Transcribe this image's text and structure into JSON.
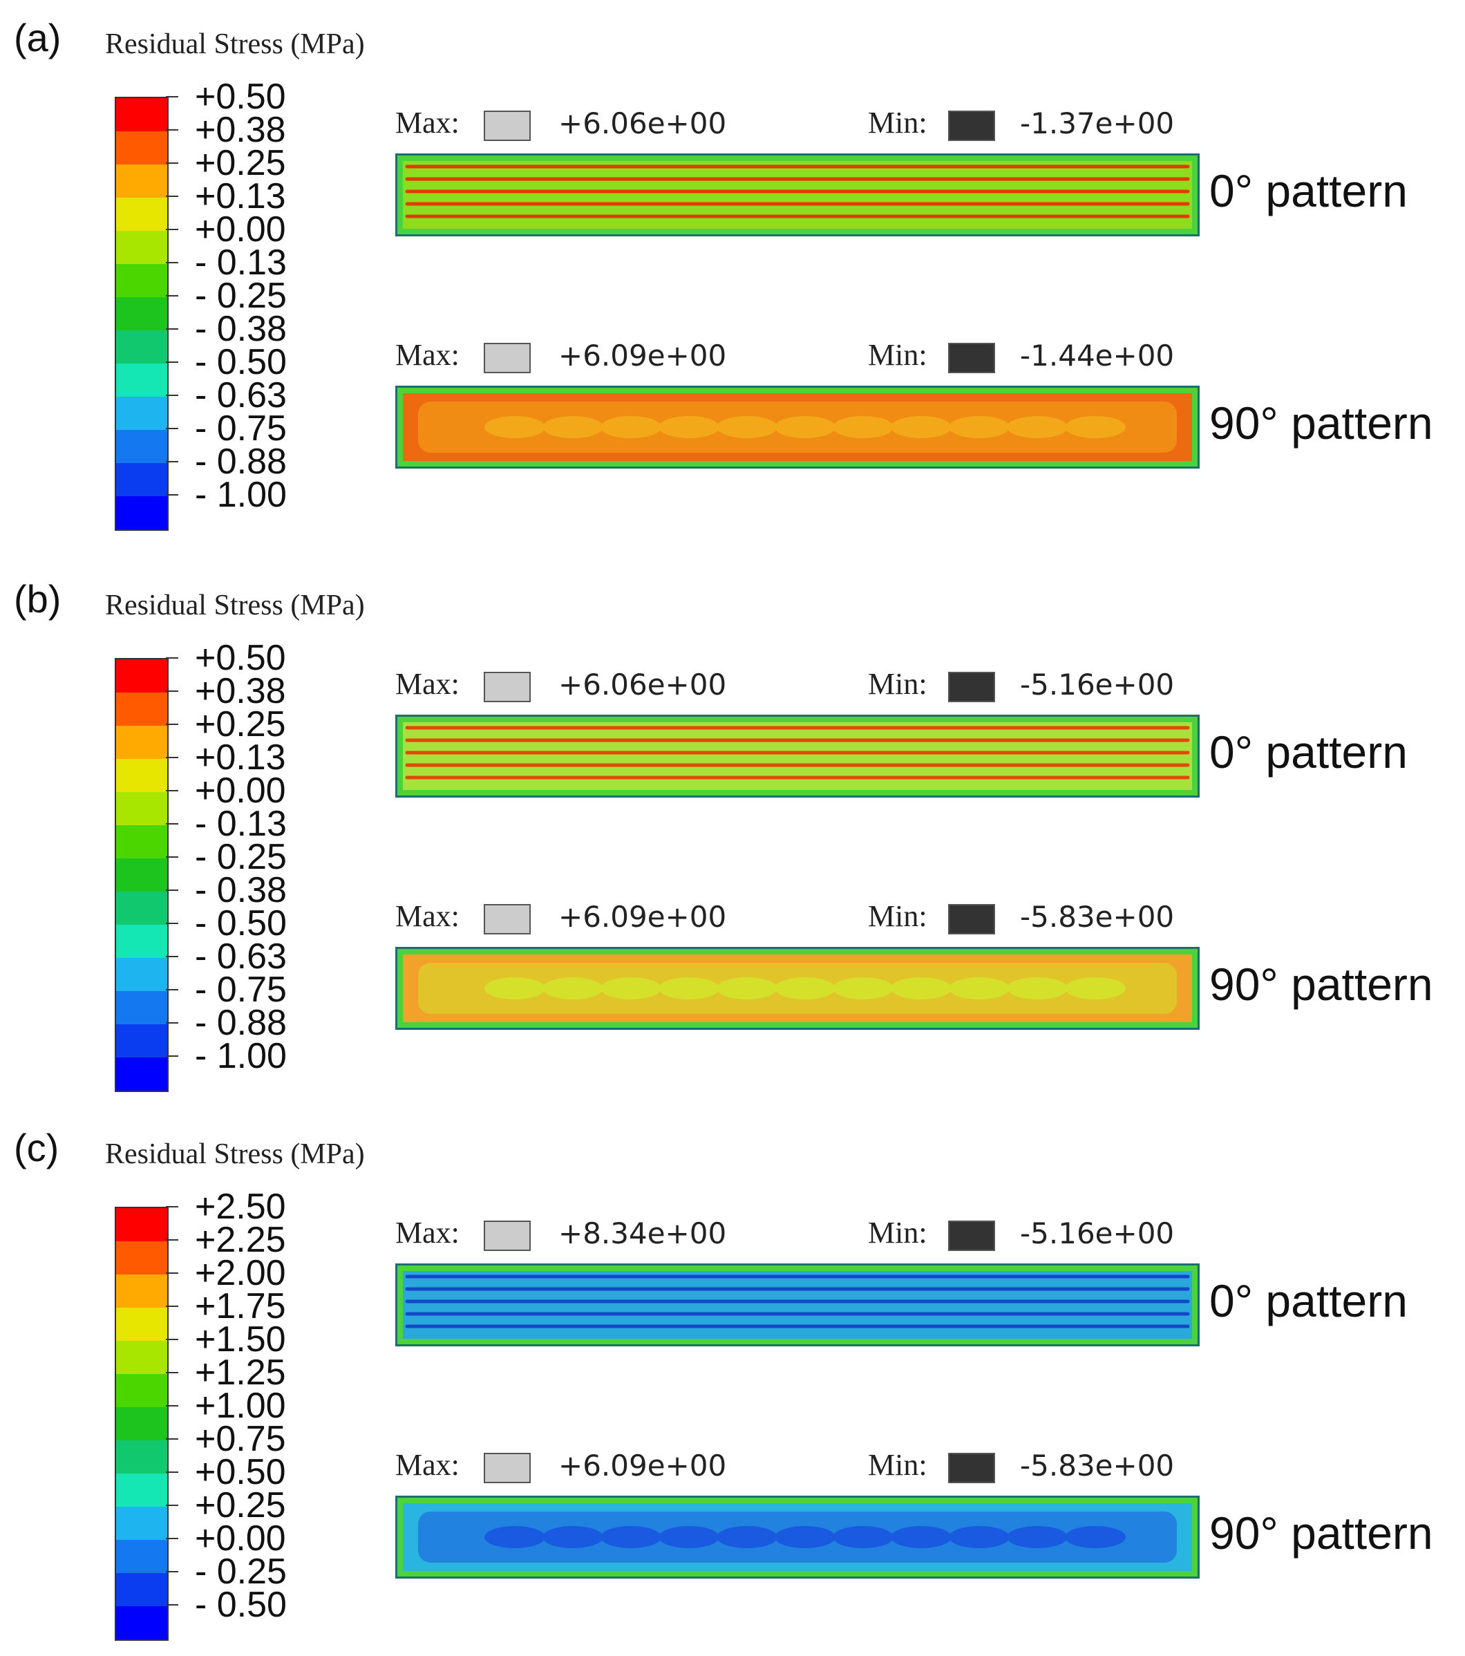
{
  "colormap": [
    "#ff0000",
    "#ff5a00",
    "#ffaa00",
    "#e6e600",
    "#a8e600",
    "#4cd600",
    "#1ec41e",
    "#12c86e",
    "#14e6b4",
    "#1eb4f0",
    "#1478f0",
    "#0a3cf0",
    "#0000ff"
  ],
  "labels": {
    "max": "Max:",
    "min": "Min:",
    "pattern_0": "0° pattern",
    "pattern_90": "90° pattern"
  },
  "panels": [
    {
      "id": "a",
      "label": "(a)",
      "legend_title": "Residual Stress (MPa)",
      "ticks": [
        "+0.50",
        "+0.38",
        "+0.25",
        "+0.13",
        "+0.00",
        "- 0.13",
        "- 0.25",
        "- 0.38",
        "- 0.50",
        "- 0.63",
        "- 0.75",
        "- 0.88",
        "- 1.00"
      ],
      "strips": [
        {
          "pattern": "0° pattern",
          "max": "+6.06e+00",
          "min": "-1.37e+00",
          "base": "#8fdc1e",
          "accent": "#e03c00",
          "style": "lines"
        },
        {
          "pattern": "90° pattern",
          "max": "+6.09e+00",
          "min": "-1.44e+00",
          "base": "#ee6a10",
          "accent": "#f2a818",
          "style": "blobs"
        }
      ]
    },
    {
      "id": "b",
      "label": "(b)",
      "legend_title": "Residual Stress (MPa)",
      "ticks": [
        "+0.50",
        "+0.38",
        "+0.25",
        "+0.13",
        "+0.00",
        "- 0.13",
        "- 0.25",
        "- 0.38",
        "- 0.50",
        "- 0.63",
        "- 0.75",
        "- 0.88",
        "- 1.00"
      ],
      "strips": [
        {
          "pattern": "0° pattern",
          "max": "+6.06e+00",
          "min": "-5.16e+00",
          "base": "#a8e03c",
          "accent": "#e04a08",
          "style": "lines"
        },
        {
          "pattern": "90° pattern",
          "max": "+6.09e+00",
          "min": "-5.83e+00",
          "base": "#f2a22a",
          "accent": "#d4e02a",
          "style": "blobs"
        }
      ]
    },
    {
      "id": "c",
      "label": "(c)",
      "legend_title": "Residual Stress (MPa)",
      "ticks": [
        "+2.50",
        "+2.25",
        "+2.00",
        "+1.75",
        "+1.50",
        "+1.25",
        "+1.00",
        "+0.75",
        "+0.50",
        "+0.25",
        "+0.00",
        "- 0.25",
        "- 0.50"
      ],
      "strips": [
        {
          "pattern": "0° pattern",
          "max": "+8.34e+00",
          "min": "-5.16e+00",
          "base": "#2aa8dc",
          "accent": "#1448c8",
          "style": "lines"
        },
        {
          "pattern": "90° pattern",
          "max": "+6.09e+00",
          "min": "-5.83e+00",
          "base": "#2ab4e0",
          "accent": "#1a5ae0",
          "style": "blobs"
        }
      ]
    }
  ]
}
